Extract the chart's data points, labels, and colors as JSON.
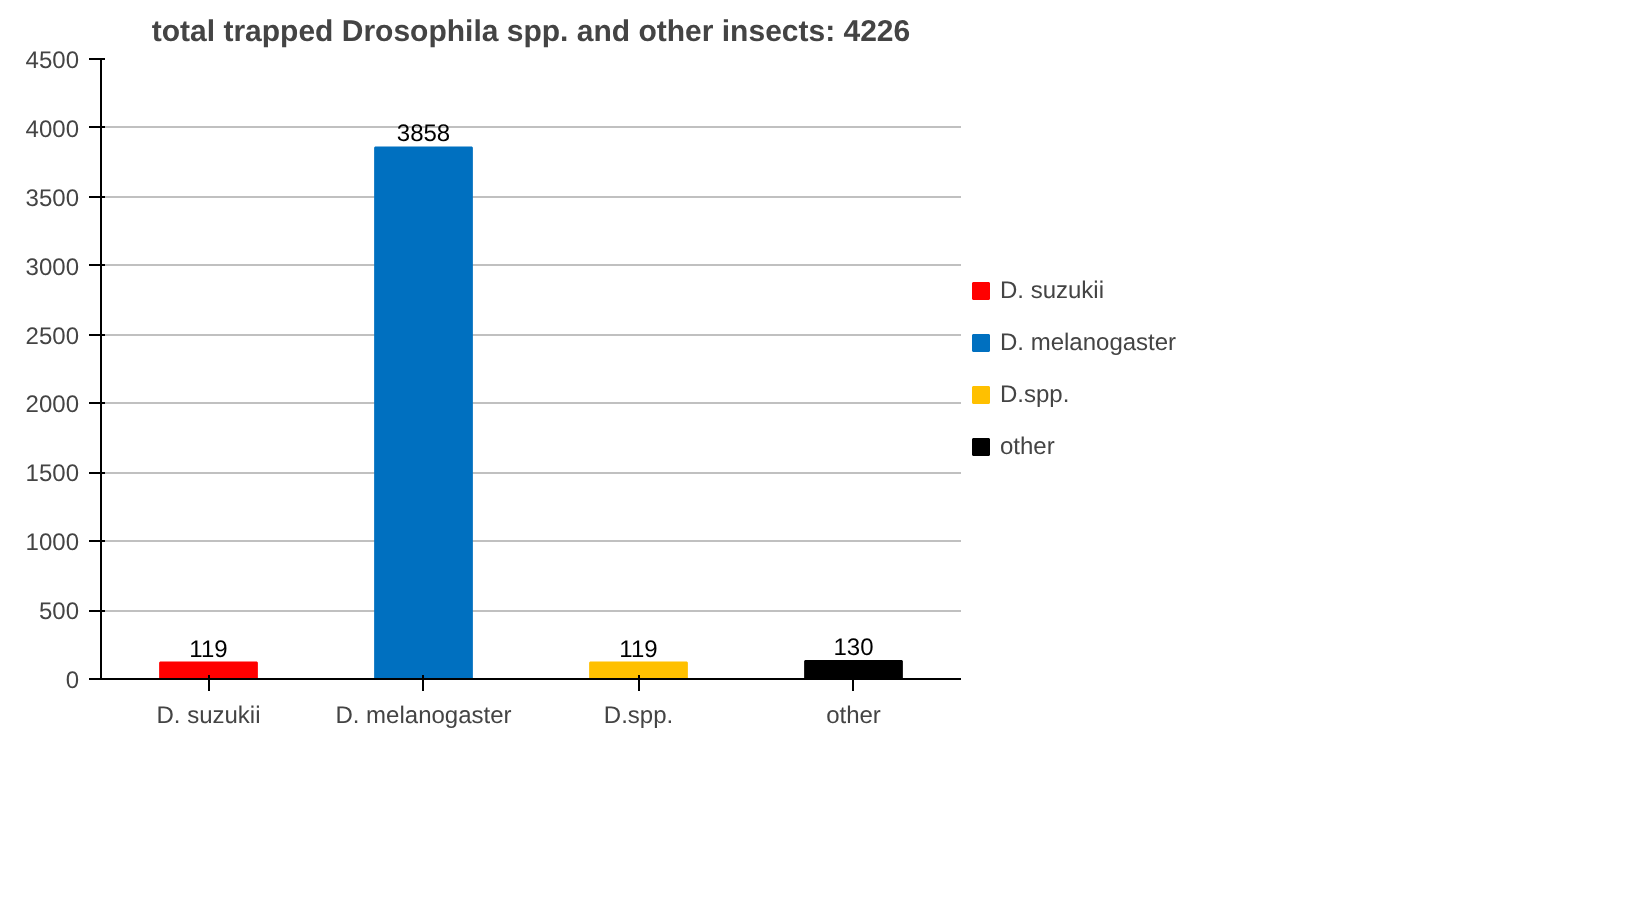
{
  "chart_data": {
    "type": "bar",
    "title": "total trapped Drosophila spp. and other insects: 4226",
    "categories": [
      "D. suzukii",
      "D. melanogaster",
      "D.spp.",
      "other"
    ],
    "stacked": true,
    "series": [
      {
        "name": "D. suzukii",
        "color": "#ff0000",
        "values": [
          119,
          null,
          null,
          null
        ]
      },
      {
        "name": "D. melanogaster",
        "color": "#0070c0",
        "values": [
          null,
          3858,
          null,
          null
        ]
      },
      {
        "name": "D.spp.",
        "color": "#ffc000",
        "values": [
          null,
          null,
          119,
          null
        ]
      },
      {
        "name": "other",
        "color": "#000000",
        "values": [
          null,
          null,
          null,
          130
        ]
      }
    ],
    "ylim": [
      0,
      4500
    ],
    "yticks": [
      0,
      500,
      1000,
      1500,
      2000,
      2500,
      3000,
      3500,
      4000,
      4500
    ],
    "grid": "y",
    "legend": "right",
    "data_labels": true
  }
}
